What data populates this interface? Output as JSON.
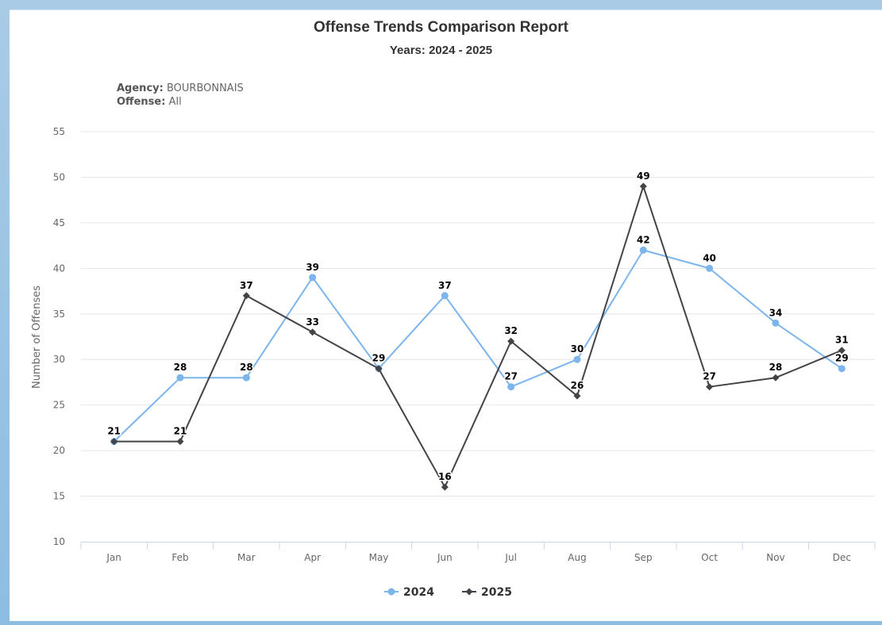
{
  "report": {
    "title": "Offense Trends Comparison Report",
    "subtitle": "Years: 2024 - 2025",
    "agency_label": "Agency:",
    "agency_value": "BOURBONNAIS",
    "offense_label": "Offense:",
    "offense_value": "All"
  },
  "chart_data": {
    "type": "line",
    "title": "Offense Trends Comparison Report",
    "subtitle": "Years: 2024 - 2025",
    "xlabel": "",
    "ylabel": "Number of Offenses",
    "categories": [
      "Jan",
      "Feb",
      "Mar",
      "Apr",
      "May",
      "Jun",
      "Jul",
      "Aug",
      "Sep",
      "Oct",
      "Nov",
      "Dec"
    ],
    "ylim": [
      10,
      55
    ],
    "yticks": [
      10,
      15,
      20,
      25,
      30,
      35,
      40,
      45,
      50,
      55
    ],
    "grid": true,
    "legend_position": "bottom-center",
    "series": [
      {
        "name": "2024",
        "color": "#7cb5ec",
        "marker": "circle",
        "values": [
          21,
          28,
          28,
          39,
          29,
          37,
          27,
          30,
          42,
          40,
          34,
          29
        ]
      },
      {
        "name": "2025",
        "color": "#434348",
        "marker": "diamond",
        "values": [
          21,
          21,
          37,
          33,
          29,
          16,
          32,
          26,
          49,
          27,
          28,
          31
        ]
      }
    ]
  }
}
